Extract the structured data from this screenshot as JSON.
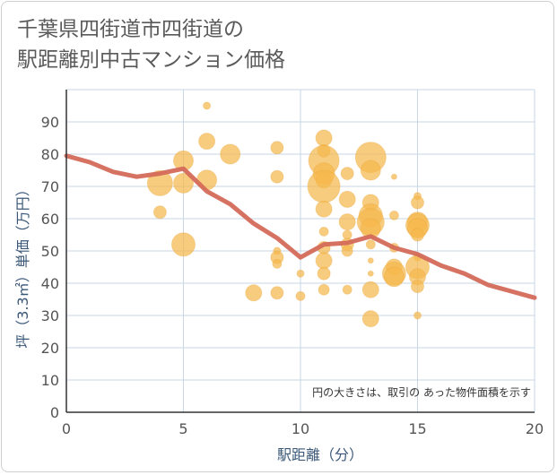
{
  "chart_data": {
    "type": "scatter",
    "title_lines": [
      "千葉県四街道市四街道の",
      "駅距離別中古マンション価格"
    ],
    "xlabel": "駅距離（分）",
    "ylabel": "坪（3.3㎡）単価（万円）",
    "xlim": [
      0,
      20
    ],
    "ylim": [
      0,
      100
    ],
    "xticks": [
      0,
      5,
      10,
      15,
      20
    ],
    "yticks": [
      0,
      10,
      20,
      30,
      40,
      50,
      60,
      70,
      80,
      90
    ],
    "grid": true,
    "note": "円の大きさは、取引の あった物件面積を示す",
    "colors": {
      "bubble": "#f5b94d",
      "line": "#d46a5a",
      "grid": "#c9d6e6",
      "axis": "#333333"
    },
    "bubbles": [
      {
        "x": 4,
        "y": 71,
        "s": 14
      },
      {
        "x": 4,
        "y": 62,
        "s": 7
      },
      {
        "x": 5,
        "y": 78,
        "s": 11
      },
      {
        "x": 5,
        "y": 71,
        "s": 11
      },
      {
        "x": 5,
        "y": 52,
        "s": 13
      },
      {
        "x": 6,
        "y": 95,
        "s": 4
      },
      {
        "x": 6,
        "y": 84,
        "s": 9
      },
      {
        "x": 6,
        "y": 72,
        "s": 11
      },
      {
        "x": 7,
        "y": 80,
        "s": 11
      },
      {
        "x": 8,
        "y": 37,
        "s": 9
      },
      {
        "x": 9,
        "y": 82,
        "s": 7
      },
      {
        "x": 9,
        "y": 73,
        "s": 7
      },
      {
        "x": 9,
        "y": 50,
        "s": 4
      },
      {
        "x": 9,
        "y": 48,
        "s": 7
      },
      {
        "x": 9,
        "y": 46,
        "s": 5
      },
      {
        "x": 9,
        "y": 37,
        "s": 7
      },
      {
        "x": 10,
        "y": 43,
        "s": 4
      },
      {
        "x": 10,
        "y": 36,
        "s": 5
      },
      {
        "x": 11,
        "y": 85,
        "s": 9
      },
      {
        "x": 11,
        "y": 81,
        "s": 7
      },
      {
        "x": 11,
        "y": 78,
        "s": 17
      },
      {
        "x": 11,
        "y": 74,
        "s": 12
      },
      {
        "x": 11,
        "y": 72,
        "s": 9
      },
      {
        "x": 11,
        "y": 70,
        "s": 18
      },
      {
        "x": 11,
        "y": 63,
        "s": 9
      },
      {
        "x": 11,
        "y": 56,
        "s": 5
      },
      {
        "x": 11,
        "y": 51,
        "s": 7
      },
      {
        "x": 11,
        "y": 47,
        "s": 9
      },
      {
        "x": 11,
        "y": 43,
        "s": 7
      },
      {
        "x": 11,
        "y": 38,
        "s": 6
      },
      {
        "x": 12,
        "y": 74,
        "s": 7
      },
      {
        "x": 12,
        "y": 66,
        "s": 9
      },
      {
        "x": 12,
        "y": 59,
        "s": 9
      },
      {
        "x": 12,
        "y": 55,
        "s": 5
      },
      {
        "x": 12,
        "y": 52,
        "s": 7
      },
      {
        "x": 12,
        "y": 50,
        "s": 6
      },
      {
        "x": 12,
        "y": 38,
        "s": 5
      },
      {
        "x": 13,
        "y": 79,
        "s": 17
      },
      {
        "x": 13,
        "y": 75,
        "s": 11
      },
      {
        "x": 13,
        "y": 65,
        "s": 9
      },
      {
        "x": 13,
        "y": 61,
        "s": 13
      },
      {
        "x": 13,
        "y": 59,
        "s": 15
      },
      {
        "x": 13,
        "y": 57,
        "s": 11
      },
      {
        "x": 13,
        "y": 52,
        "s": 5
      },
      {
        "x": 13,
        "y": 47,
        "s": 3
      },
      {
        "x": 13,
        "y": 43,
        "s": 3
      },
      {
        "x": 13,
        "y": 38,
        "s": 9
      },
      {
        "x": 13,
        "y": 29,
        "s": 9
      },
      {
        "x": 14,
        "y": 73,
        "s": 3
      },
      {
        "x": 14,
        "y": 61,
        "s": 5
      },
      {
        "x": 14,
        "y": 51,
        "s": 5
      },
      {
        "x": 14,
        "y": 45,
        "s": 9
      },
      {
        "x": 14,
        "y": 43,
        "s": 13
      },
      {
        "x": 14,
        "y": 42,
        "s": 11
      },
      {
        "x": 15,
        "y": 67,
        "s": 4
      },
      {
        "x": 15,
        "y": 65,
        "s": 7
      },
      {
        "x": 15,
        "y": 59,
        "s": 11
      },
      {
        "x": 15,
        "y": 58,
        "s": 13
      },
      {
        "x": 15,
        "y": 57,
        "s": 11
      },
      {
        "x": 15,
        "y": 55,
        "s": 7
      },
      {
        "x": 15,
        "y": 48,
        "s": 4
      },
      {
        "x": 15,
        "y": 45,
        "s": 13
      },
      {
        "x": 15,
        "y": 42,
        "s": 9
      },
      {
        "x": 15,
        "y": 39,
        "s": 7
      },
      {
        "x": 15,
        "y": 30,
        "s": 4
      }
    ],
    "trend": {
      "x": [
        0,
        1,
        2,
        3,
        4,
        5,
        6,
        7,
        8,
        9,
        10,
        11,
        12,
        13,
        14,
        15,
        16,
        17,
        18,
        19,
        20
      ],
      "y": [
        79.5,
        77.5,
        74.5,
        73,
        74,
        75.5,
        68.5,
        64.5,
        58.5,
        54,
        48,
        52,
        52.5,
        54.5,
        51,
        49,
        45.5,
        43,
        39.5,
        37.5,
        35.5
      ]
    }
  }
}
